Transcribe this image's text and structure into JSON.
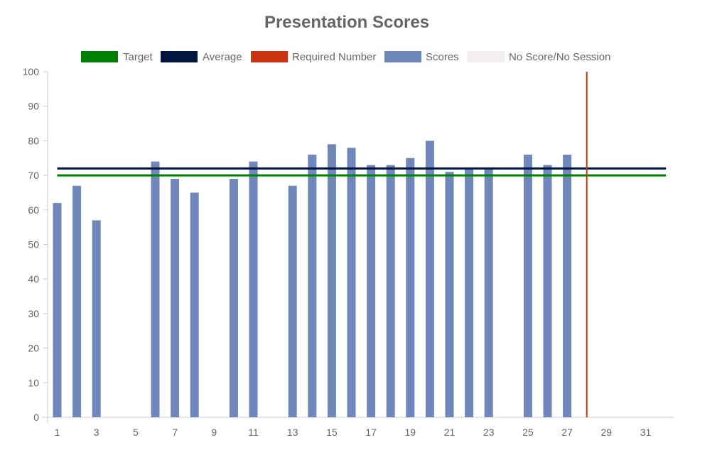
{
  "chart_data": {
    "type": "bar",
    "title": "Presentation Scores",
    "xlabel": "",
    "ylabel": "",
    "ylim": [
      0,
      100
    ],
    "yticks": [
      0,
      10,
      20,
      30,
      40,
      50,
      60,
      70,
      80,
      90,
      100
    ],
    "xlim": [
      1,
      32
    ],
    "xticks": [
      1,
      3,
      5,
      7,
      9,
      11,
      13,
      15,
      17,
      19,
      21,
      23,
      25,
      27,
      29,
      31
    ],
    "grid": false,
    "legend_position": "top",
    "legend": [
      {
        "label": "Target",
        "color": "#008000"
      },
      {
        "label": "Average",
        "color": "#001540"
      },
      {
        "label": "Required Number",
        "color": "#cc3311"
      },
      {
        "label": "Scores",
        "color": "#6f87ba"
      },
      {
        "label": "No Score/No Session",
        "color": "#f5eff2"
      }
    ],
    "series": [
      {
        "name": "Scores",
        "type": "bar",
        "color": "#6f87ba",
        "points": [
          [
            1,
            62
          ],
          [
            2,
            67
          ],
          [
            3,
            57
          ],
          [
            6,
            74
          ],
          [
            7,
            69
          ],
          [
            8,
            65
          ],
          [
            10,
            69
          ],
          [
            11,
            74
          ],
          [
            13,
            67
          ],
          [
            14,
            76
          ],
          [
            15,
            79
          ],
          [
            16,
            78
          ],
          [
            17,
            73
          ],
          [
            18,
            73
          ],
          [
            19,
            75
          ],
          [
            20,
            80
          ],
          [
            21,
            71
          ],
          [
            22,
            72
          ],
          [
            23,
            72
          ],
          [
            25,
            76
          ],
          [
            26,
            73
          ],
          [
            27,
            76
          ]
        ]
      },
      {
        "name": "Target",
        "type": "hline",
        "value": 70,
        "color": "#008000"
      },
      {
        "name": "Average",
        "type": "hline",
        "value": 72,
        "color": "#001540"
      },
      {
        "name": "Required Number",
        "type": "vline",
        "value": 28,
        "color": "#cc3311"
      }
    ]
  }
}
